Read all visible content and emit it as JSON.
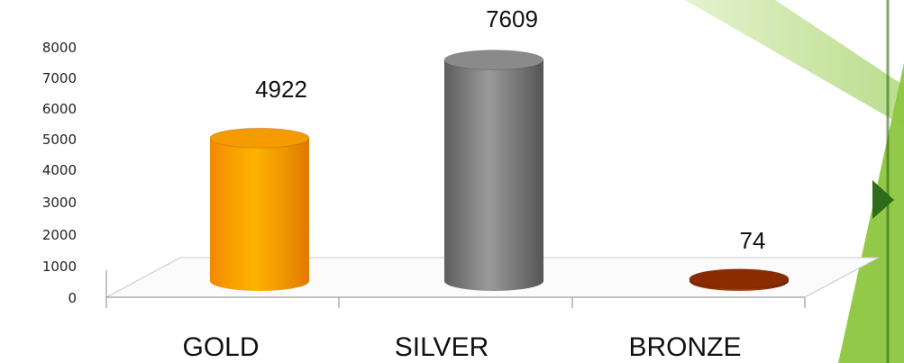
{
  "colors": {
    "gold": "#f59b00",
    "silver": "#7b7b7b",
    "bronze": "#8a2c00",
    "theme_green": "#8dc63f",
    "theme_dark_green": "#2e6b1a"
  },
  "chart_data": {
    "type": "bar",
    "style": "3d-cylinder",
    "categories": [
      "GOLD",
      "SILVER",
      "BRONZE"
    ],
    "values": [
      4922,
      7609,
      74
    ],
    "data_labels": [
      "4922",
      "7609",
      "74"
    ],
    "y_ticks": [
      "0",
      "1000",
      "2000",
      "3000",
      "4000",
      "5000",
      "6000",
      "7000",
      "8000"
    ],
    "ylim": [
      0,
      8000
    ],
    "grid": false,
    "legend": "none",
    "title": "",
    "xlabel": "",
    "ylabel": ""
  }
}
